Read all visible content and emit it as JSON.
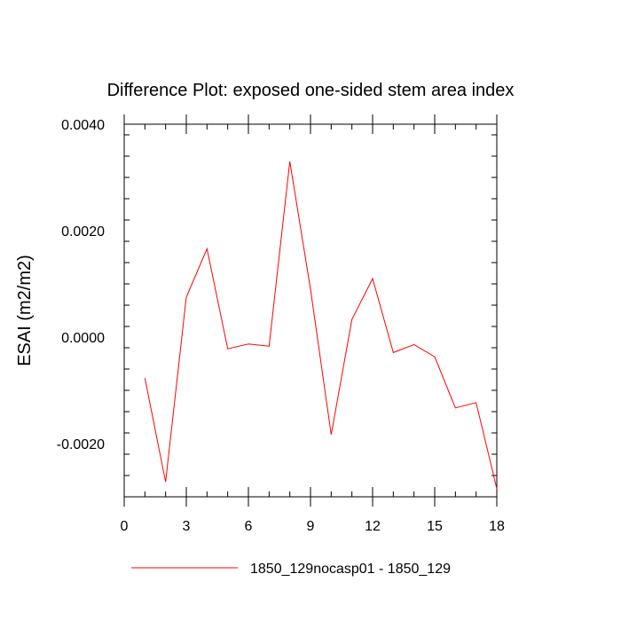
{
  "chart_data": {
    "type": "line",
    "title": "Difference Plot: exposed one-sided stem area index",
    "xlabel": "",
    "ylabel": "ESAI  (m2/m2)",
    "xlim": [
      0,
      18
    ],
    "ylim": [
      -0.003,
      0.004
    ],
    "x_ticks": [
      0,
      3,
      6,
      9,
      12,
      15,
      18
    ],
    "x_tick_labels": [
      "0",
      "3",
      "6",
      "9",
      "12",
      "15",
      "18"
    ],
    "y_ticks": [
      0.004,
      0.002,
      0.0,
      -0.002
    ],
    "y_tick_labels": [
      "0.0040",
      "0.0020",
      "0.0000",
      "-0.0020"
    ],
    "grid": false,
    "legend_position": "bottom",
    "series": [
      {
        "name": "1850_129nocasp01 - 1850_129",
        "color": "#ff0000",
        "x": [
          1,
          2,
          3,
          4,
          5,
          6,
          7,
          8,
          9,
          10,
          11,
          12,
          13,
          14,
          15,
          16,
          17,
          18
        ],
        "values": [
          -0.00077,
          -0.00272,
          0.00075,
          0.00166,
          -0.00022,
          -0.00013,
          -0.00017,
          0.0033,
          0.0009,
          -0.00183,
          0.00033,
          0.0011,
          -0.00029,
          -0.00014,
          -0.00037,
          -0.00133,
          -0.00123,
          -0.00285
        ]
      }
    ]
  }
}
